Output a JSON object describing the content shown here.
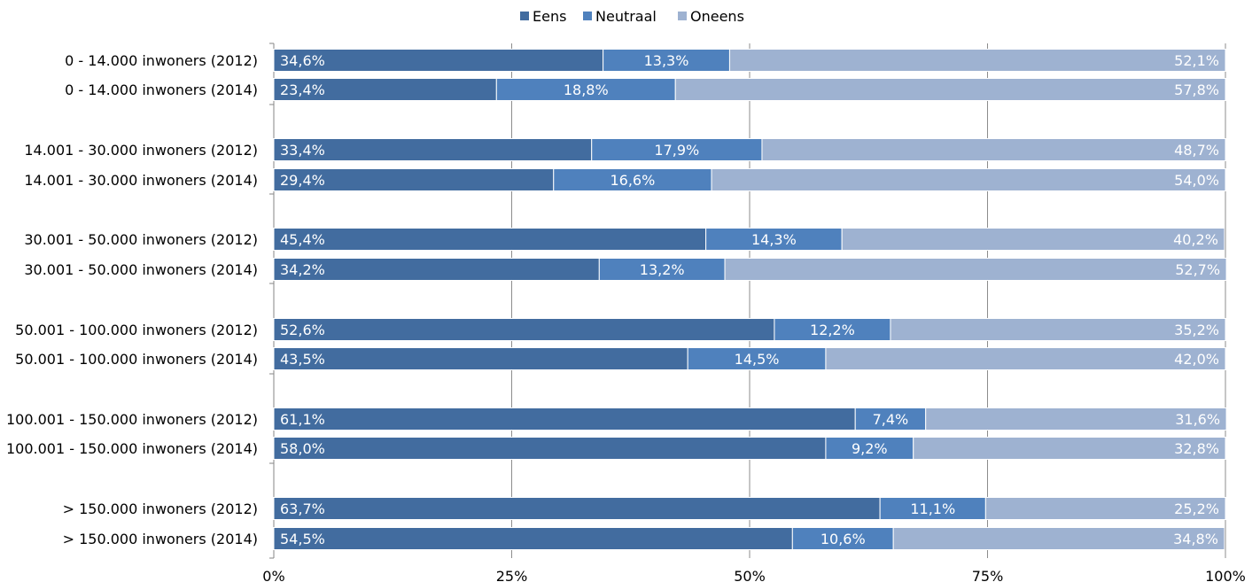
{
  "chart_data": {
    "type": "bar",
    "orientation": "horizontal",
    "stacked": "percent",
    "categories": [
      "0 - 14.000 inwoners (2012)",
      "0 - 14.000 inwoners (2014)",
      "14.001 - 30.000 inwoners (2012)",
      "14.001 - 30.000 inwoners (2014)",
      "30.001 - 50.000 inwoners (2012)",
      "30.001 - 50.000 inwoners (2014)",
      "50.001 - 100.000 inwoners (2012)",
      "50.001 - 100.000 inwoners (2014)",
      "100.001 - 150.000 inwoners (2012)",
      "100.001 - 150.000 inwoners (2014)",
      "> 150.000 inwoners (2012)",
      "> 150.000 inwoners (2014)"
    ],
    "series": [
      {
        "name": "Eens",
        "color": "#426c9f",
        "values": [
          34.6,
          23.4,
          33.4,
          29.4,
          45.4,
          34.2,
          52.6,
          43.5,
          61.1,
          58.0,
          63.7,
          54.5
        ],
        "labels": [
          "34,6%",
          "23,4%",
          "33,4%",
          "29,4%",
          "45,4%",
          "34,2%",
          "52,6%",
          "43,5%",
          "61,1%",
          "58,0%",
          "63,7%",
          "54,5%"
        ]
      },
      {
        "name": "Neutraal",
        "color": "#4f81bd",
        "values": [
          13.3,
          18.8,
          17.9,
          16.6,
          14.3,
          13.2,
          12.2,
          14.5,
          7.4,
          9.2,
          11.1,
          10.6
        ],
        "labels": [
          "13,3%",
          "18,8%",
          "17,9%",
          "16,6%",
          "14,3%",
          "13,2%",
          "12,2%",
          "14,5%",
          "7,4%",
          "9,2%",
          "11,1%",
          "10,6%"
        ]
      },
      {
        "name": "Oneens",
        "color": "#9eb2d1",
        "values": [
          52.1,
          57.8,
          48.7,
          54.0,
          40.2,
          52.7,
          35.2,
          42.0,
          31.6,
          32.8,
          25.2,
          34.8
        ],
        "labels": [
          "52,1%",
          "57,8%",
          "48,7%",
          "54,0%",
          "40,2%",
          "52,7%",
          "35,2%",
          "42,0%",
          "31,6%",
          "32,8%",
          "25,2%",
          "34,8%"
        ]
      }
    ],
    "x_ticks": [
      0,
      25,
      50,
      75,
      100
    ],
    "x_tick_labels": [
      "0%",
      "25%",
      "50%",
      "75%",
      "100%"
    ],
    "xlim": [
      0,
      100
    ],
    "grid": true,
    "legend_position": "top-center"
  }
}
